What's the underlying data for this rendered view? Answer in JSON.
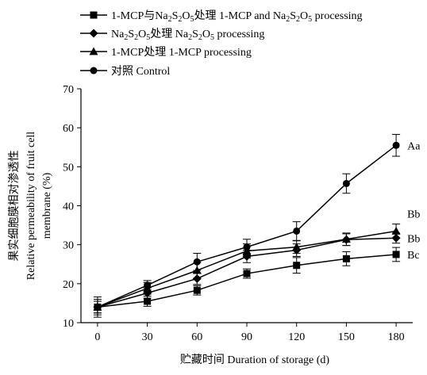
{
  "chart_data": {
    "type": "line",
    "xlabel": "贮藏时间 Duration of storage (d)",
    "ylabel": {
      "cn": "果实细胞膜相对渗透性",
      "en1": "Relative permeability of fruit cell",
      "en2": "membrane (%)"
    },
    "x": [
      0,
      30,
      60,
      90,
      120,
      150,
      180
    ],
    "xlim": [
      -10,
      190
    ],
    "ylim": [
      10,
      70
    ],
    "yticks": [
      10,
      20,
      30,
      40,
      50,
      60,
      70
    ],
    "grid": false,
    "legend_position": "top-left",
    "series": [
      {
        "name": "1-MCP与Na2S2O5处理 1-MCP and Na2S2O5 processing",
        "legend_parts": [
          "1-MCP与Na",
          "2",
          "S",
          "2",
          "O",
          "5",
          "处理 1-MCP and Na",
          "2",
          "S",
          "2",
          "O",
          "5",
          " processing"
        ],
        "marker": "square",
        "values": [
          14.0,
          15.5,
          18.3,
          22.6,
          24.7,
          26.4,
          27.5
        ],
        "errors": [
          1.5,
          1.3,
          1.2,
          1.2,
          2.0,
          1.8,
          1.8
        ],
        "end_label": "Bc"
      },
      {
        "name": "Na2S2O5处理 Na2S2O5 processing",
        "legend_parts": [
          "Na",
          "2",
          "S",
          "2",
          "O",
          "5",
          "处理 Na",
          "2",
          "S",
          "2",
          "O",
          "5",
          " processing"
        ],
        "marker": "diamond",
        "values": [
          14.0,
          17.6,
          21.3,
          27.0,
          28.6,
          31.3,
          31.7
        ],
        "errors": [
          1.5,
          1.3,
          1.5,
          1.6,
          1.6,
          1.5,
          1.3
        ],
        "end_label": "Bb"
      },
      {
        "name": "1-MCP处理 1-MCP processing",
        "legend_parts": [
          "1-MCP处理 1-MCP processing"
        ],
        "marker": "triangle",
        "values": [
          14.0,
          18.8,
          23.4,
          28.4,
          29.4,
          31.4,
          33.5
        ],
        "errors": [
          2.6,
          1.5,
          2.0,
          1.8,
          1.6,
          1.6,
          1.8
        ],
        "end_label": "Bb"
      },
      {
        "name": "对照 Control",
        "legend_parts": [
          "对照 Control"
        ],
        "marker": "circle",
        "values": [
          14.0,
          19.6,
          25.6,
          29.4,
          33.5,
          45.7,
          55.5
        ],
        "errors": [
          2.0,
          1.2,
          2.2,
          2.0,
          2.4,
          2.5,
          2.8
        ],
        "end_label": "Aa"
      }
    ]
  }
}
